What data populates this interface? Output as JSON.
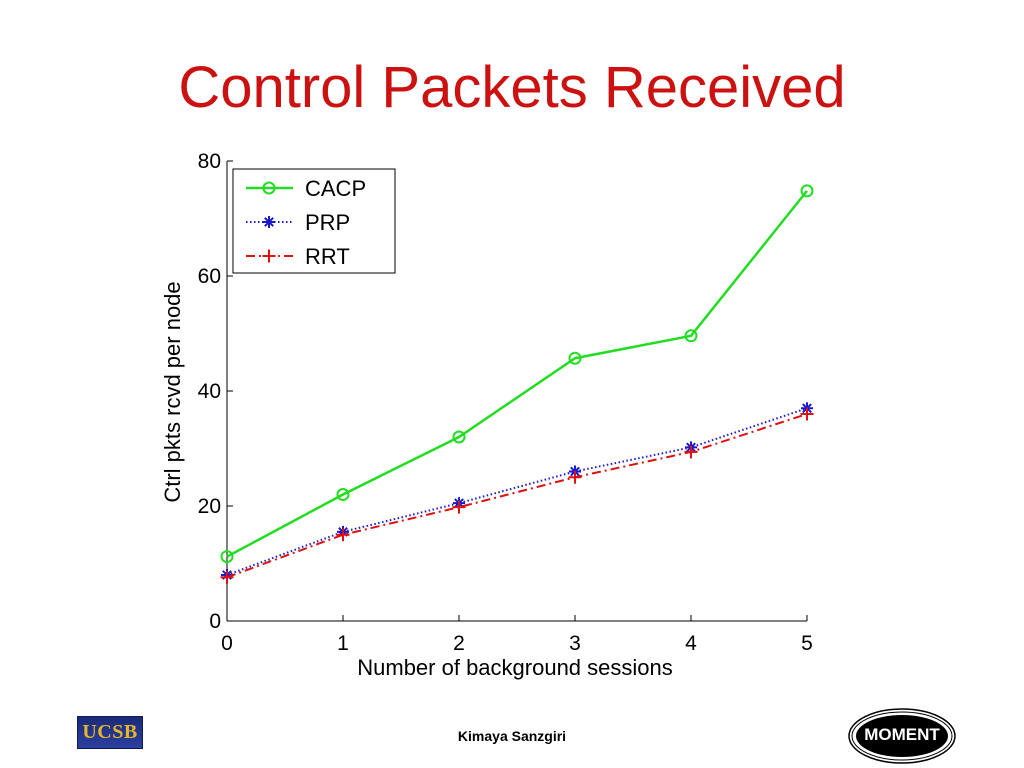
{
  "slide": {
    "title": "Control Packets Received",
    "author": "Kimaya Sanzgiri",
    "logo_left_text": "UCSB",
    "logo_right_text": "MOMENT"
  },
  "colors": {
    "title": "#cc1111",
    "cacp": "#22dd22",
    "prp": "#1a1acc",
    "rrt": "#dd1111"
  },
  "chart_data": {
    "type": "line",
    "title": "",
    "xlabel": "Number of background sessions",
    "ylabel": "Ctrl pkts rcvd per node",
    "x": [
      0,
      1,
      2,
      3,
      4,
      5
    ],
    "xlim": [
      0,
      5
    ],
    "ylim": [
      0,
      80
    ],
    "xticks": [
      "0",
      "1",
      "2",
      "3",
      "4",
      "5"
    ],
    "yticks": [
      "0",
      "20",
      "40",
      "60",
      "80"
    ],
    "grid": false,
    "legend_position": "top-left",
    "series": [
      {
        "name": "CACP",
        "values": [
          11.2,
          22,
          32,
          45.7,
          49.6,
          74.8
        ],
        "color": "#22dd22",
        "marker": "circle",
        "line": "solid"
      },
      {
        "name": "PRP",
        "values": [
          8,
          15.5,
          20.5,
          26,
          30.2,
          37
        ],
        "color": "#1a1acc",
        "marker": "asterisk",
        "line": "dotted"
      },
      {
        "name": "RRT",
        "values": [
          7.6,
          15,
          19.8,
          25,
          29.4,
          36
        ],
        "color": "#dd1111",
        "marker": "plus",
        "line": "dashdot"
      }
    ]
  }
}
